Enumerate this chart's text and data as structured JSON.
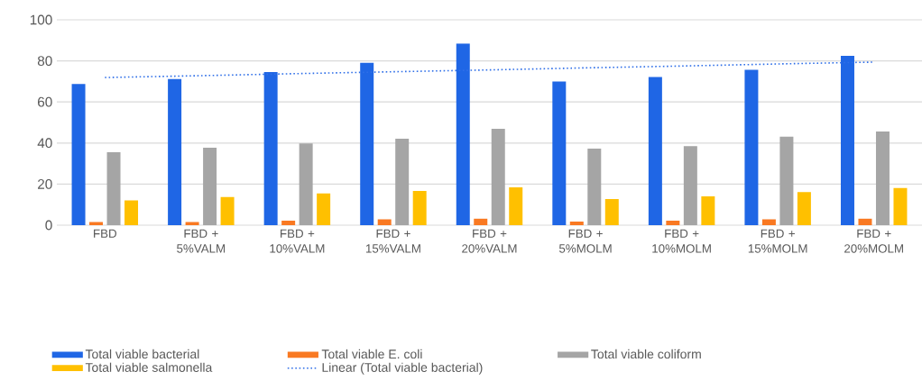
{
  "chart_data": {
    "type": "bar",
    "categories": [
      "FBD",
      "FBD + 5%VALM",
      "FBD + 10%VALM",
      "FBD + 15%VALM",
      "FBD + 20%VALM",
      "FBD + 5%MOLM",
      "FBD + 10%MOLM",
      "FBD + 15%MOLM",
      "FBD + 20%MOLM"
    ],
    "series": [
      {
        "name": "Total viable bacterial",
        "color": "#1f66e5",
        "values": [
          68.7,
          71.2,
          74.6,
          79.1,
          88.5,
          69.9,
          72.1,
          75.6,
          82.5
        ]
      },
      {
        "name": "Total viable E. coli",
        "color": "#f97922",
        "values": [
          1.5,
          1.5,
          2.2,
          2.8,
          3.2,
          1.8,
          2.2,
          2.8,
          3.2
        ]
      },
      {
        "name": "Total viable coliform",
        "color": "#a5a5a5",
        "values": [
          35.5,
          37.7,
          39.8,
          42.1,
          46.9,
          37.3,
          38.5,
          43.1,
          45.6
        ]
      },
      {
        "name": "Total viable salmonella",
        "color": "#ffc000",
        "values": [
          12.1,
          13.7,
          15.5,
          16.7,
          18.4,
          12.7,
          14.0,
          16.1,
          18.1
        ]
      },
      {
        "name": "Linear (Total viable bacterial)",
        "type": "line",
        "line_style": "dotted",
        "color": "#2f6fe8",
        "values": [
          71.9,
          72.8,
          73.8,
          74.7,
          75.6,
          76.6,
          77.5,
          78.5,
          79.4
        ]
      }
    ],
    "ylim": [
      0,
      100
    ],
    "yticks": [
      0,
      20,
      40,
      60,
      80,
      100
    ],
    "grid": "y",
    "legend": "bottom"
  }
}
